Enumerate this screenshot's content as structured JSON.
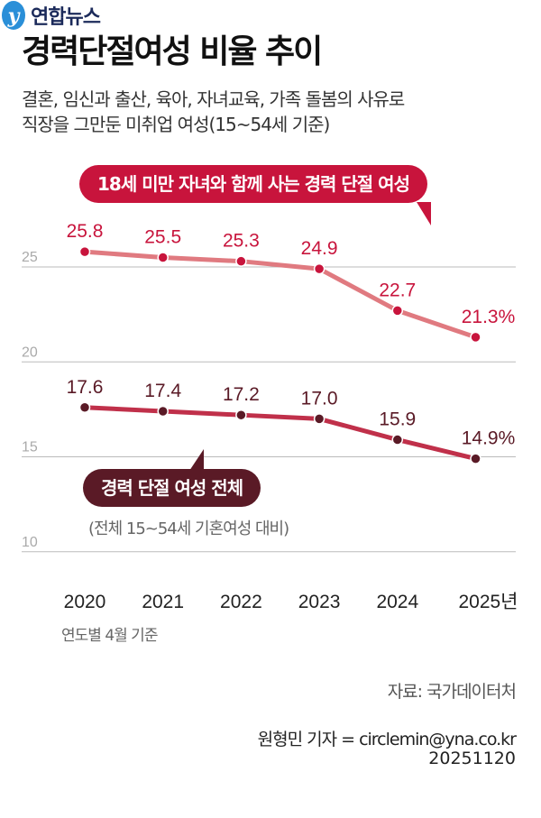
{
  "title": "경력단절여성 비율 추이",
  "subtitle_lines": [
    "결혼, 임신과 출산, 육아, 자녀교육, 가족 돌봄의 사유로",
    "직장을 그만둔 미취업 여성(15~54세 기준)"
  ],
  "chart_data": {
    "type": "line",
    "categories": [
      "2020",
      "2021",
      "2022",
      "2023",
      "2024",
      "2025년"
    ],
    "x_note": "연도별 4월 기준",
    "yticks": [
      25,
      20,
      15,
      10
    ],
    "ylim": [
      10,
      26.5
    ],
    "grid": true,
    "series": [
      {
        "name": "18세 미만 자녀와 함께 사는 경력 단절 여성",
        "values": [
          25.8,
          25.5,
          25.3,
          24.9,
          22.7,
          21.3
        ],
        "labels": [
          "25.8",
          "25.5",
          "25.3",
          "24.9",
          "22.7",
          "21.3%"
        ],
        "line_color": "#e07a80",
        "dot_color": "#c8143c",
        "label_color": "#c8143c"
      },
      {
        "name": "경력 단절 여성 전체",
        "note": "(전체 15~54세 기혼여성 대비)",
        "values": [
          17.6,
          17.4,
          17.2,
          17.0,
          15.9,
          14.9
        ],
        "labels": [
          "17.6",
          "17.4",
          "17.2",
          "17.0",
          "15.9",
          "14.9%"
        ],
        "line_color": "#c0304a",
        "dot_color": "#5a1a26",
        "label_color": "#5a1a26"
      }
    ]
  },
  "footer": {
    "logo": "연합뉴스",
    "source": "자료: 국가데이터처",
    "reporter": "원형민 기자 = circlemin@yna.co.kr",
    "date": "20251120"
  }
}
